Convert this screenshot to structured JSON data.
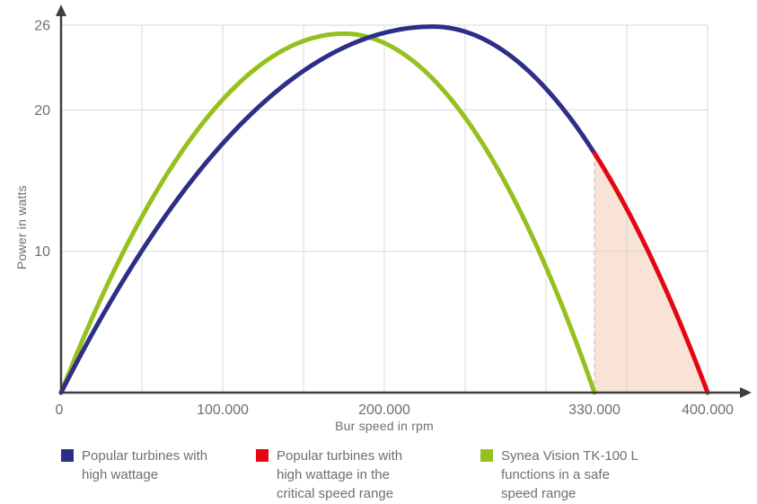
{
  "chart_data": {
    "type": "line",
    "xlabel": "Bur speed in rpm",
    "ylabel": "Power in watts",
    "xlim": [
      0,
      420000
    ],
    "ylim": [
      0,
      27
    ],
    "grid": true,
    "x_grid_step": 50000,
    "x_ticks": [
      {
        "value": 0,
        "label": "0"
      },
      {
        "value": 100000,
        "label": "100.000"
      },
      {
        "value": 200000,
        "label": "200.000"
      },
      {
        "value": 330000,
        "label": "330.000"
      },
      {
        "value": 400000,
        "label": "400.000"
      }
    ],
    "y_ticks": [
      {
        "value": 10,
        "label": "10"
      },
      {
        "value": 20,
        "label": "20"
      },
      {
        "value": 26,
        "label": "26"
      }
    ],
    "series": [
      {
        "name": "Popular turbines with high wattage",
        "color": "#2d2e87",
        "critical_color": "#e30613",
        "critical_from_x": 330000,
        "curve": {
          "start_x": 0,
          "peak_x": 230000,
          "peak_y": 25.9,
          "end_x": 400000
        },
        "key_points": [
          [
            0,
            0
          ],
          [
            100000,
            17.6
          ],
          [
            230000,
            25.9
          ],
          [
            330000,
            16.9
          ],
          [
            400000,
            0
          ]
        ]
      },
      {
        "name": "Synea Vision TK-100 L",
        "color": "#95c11f",
        "curve": {
          "start_x": 0,
          "peak_x": 175000,
          "peak_y": 25.4,
          "end_x": 330000
        },
        "key_points": [
          [
            0,
            0
          ],
          [
            100000,
            20.7
          ],
          [
            175000,
            25.4
          ],
          [
            250000,
            20.7
          ],
          [
            330000,
            0
          ]
        ]
      }
    ],
    "critical_region": {
      "x_from": 330000,
      "x_to": 400000,
      "fill": "#f9e2d6",
      "left_guide": "dashed"
    },
    "legend_position": "bottom"
  },
  "style": {
    "grid_color": "#d8d8d8",
    "axis_color": "#3f3e3e",
    "text_color": "#706f6f",
    "dashed_guide_color": "#cfcfcf",
    "background": "#ffffff",
    "blue": "#2d2e87",
    "red": "#e30613",
    "green": "#95c11f"
  },
  "legend": {
    "items": [
      {
        "color": "#2d2e87",
        "label": "Popular turbines with high wattage",
        "lines": [
          "Popular turbines with",
          "high wattage"
        ]
      },
      {
        "color": "#e30613",
        "label": "Popular turbines with high wattage in the critical speed range",
        "lines": [
          "Popular turbines with",
          "high wattage in the",
          "critical speed range"
        ]
      },
      {
        "color": "#95c11f",
        "label": "Synea Vision TK-100 L functions in a safe speed range",
        "lines": [
          "Synea Vision TK-100 L",
          "functions in a safe",
          "speed range"
        ]
      }
    ]
  }
}
